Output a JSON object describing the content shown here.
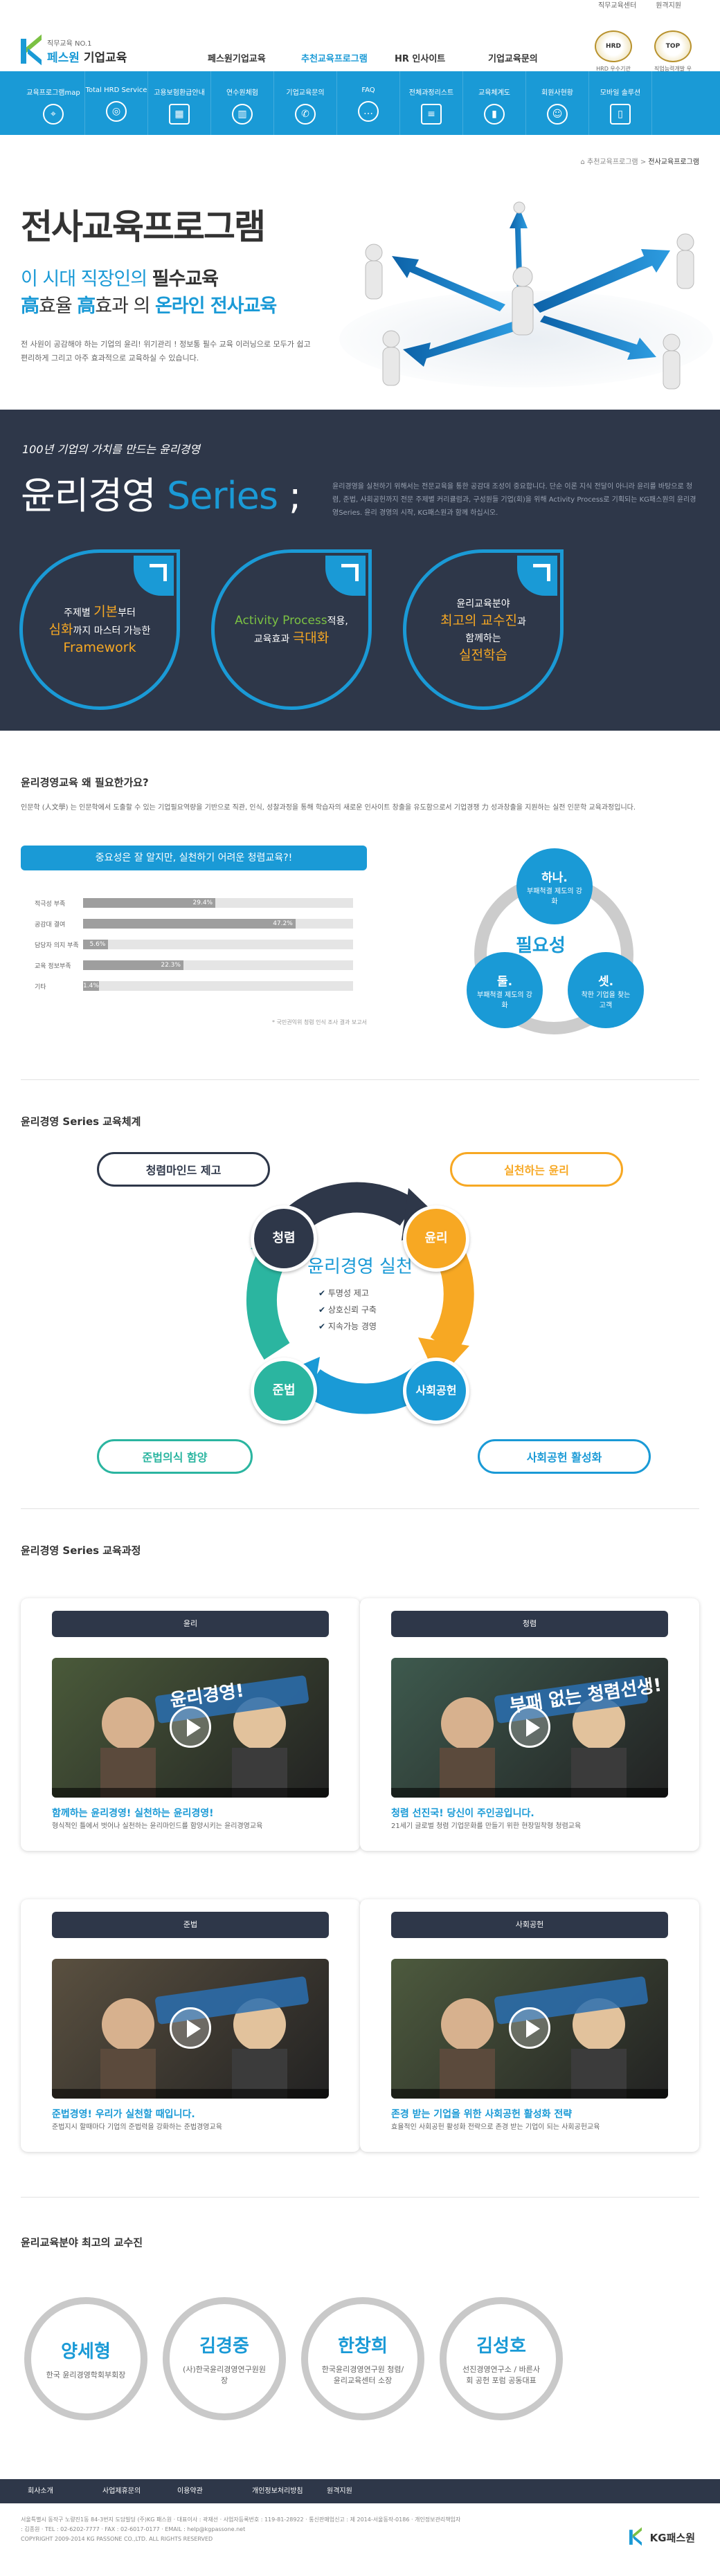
{
  "toplinks": [
    "직무교육센터",
    "원격지원"
  ],
  "logo": {
    "sub": "직무교육 NO.1",
    "brand": "페스원",
    "suffix": "기업교육"
  },
  "gnb": [
    "페스원기업교육",
    "추천교육프로그램",
    "HR 인사이트",
    "기업교육문의"
  ],
  "awards": [
    {
      "medal": "HRD",
      "caption": "HRD 우수기관"
    },
    {
      "medal": "TOP",
      "caption": "직업능력개발 우수기관"
    }
  ],
  "subnav": [
    {
      "label": "교육프로그램map",
      "icon": "compass-icon",
      "glyph": "⌖"
    },
    {
      "label": "Total HRD Service",
      "icon": "target-icon",
      "glyph": "◎"
    },
    {
      "label": "고용보험환급안내",
      "icon": "calculator-icon",
      "glyph": "▦"
    },
    {
      "label": "연수원체험",
      "icon": "building-icon",
      "glyph": "▥"
    },
    {
      "label": "기업교육문의",
      "icon": "phone-icon",
      "glyph": "✆"
    },
    {
      "label": "FAQ",
      "icon": "chat-icon",
      "glyph": "…"
    },
    {
      "label": "전체과정리스트",
      "icon": "list-icon",
      "glyph": "≡"
    },
    {
      "label": "교육체계도",
      "icon": "chart-icon",
      "glyph": "▮"
    },
    {
      "label": "회원사현황",
      "icon": "people-icon",
      "glyph": "☺"
    },
    {
      "label": "모바일 솔루션",
      "icon": "mobile-icon",
      "glyph": "▯"
    }
  ],
  "breadcrumb": {
    "parent": "추천교육프로그램",
    "sep": ">",
    "current": "전사교육프로그램"
  },
  "hero": {
    "title": "전사교육프로그램",
    "line1_pre": "이 시대 직장인의 ",
    "line1_bold": "필수교육",
    "line2_a": "高",
    "line2_b": "효율 ",
    "line2_c": "高",
    "line2_d": "효과 의 ",
    "line2_e": "온라인 전사교육",
    "desc": "전 사원이 공감해야 하는 기업의 윤리! 위기관리 ! 정보통 필수 교육 이러닝으로 모두가 쉽고 편리하게 그리고 아주 효과적으로 교육하실 수 있습니다."
  },
  "ethics": {
    "tagline": "100년 기업의 가치를 만드는 윤리경영",
    "title_a": "윤리경영 ",
    "title_b": "Series",
    "title_c": " ;",
    "desc": "윤리경영을 실천하기 위해서는 전문교육을 통한 공감대 조성이 중요합니다. 단순 이론 지식 전달이 아니라 윤리를 바탕으로 청렴, 준법, 사회공헌까지 전문 주제별 커리큘럼과, 구성원들 기업(회)을 위해 Activity Process로 기획되는 KG패스원의 윤리경영Series. 윤리 경영의 시작, KG패스원과 함께 하십시오.",
    "leaves": [
      {
        "l1": "주제별 ",
        "h1": "기본",
        "l1b": "부터",
        "h2": "심화",
        "l2": "까지 마스터 가능한",
        "h3": "Framework"
      },
      {
        "l1": "Activity Process",
        "l1b": "적용,",
        "l2": "교육효과 ",
        "h2": "극대화"
      },
      {
        "l1": "윤리교육분야",
        "h2": "최고의 교수진",
        "l2": "과",
        "l3": "함께하는",
        "h3": "실전학습"
      }
    ]
  },
  "why": {
    "title": "윤리경영교육 왜 필요한가요?",
    "desc": "인문학 (人文學) 는 인문학에서 도출할 수 있는 기업필요역량을 기반으로 직관, 인식, 성찰과정을 통해 학습자의 새로운 인사이트 창출을 유도함으로서 기업경쟁 力 성과창출을 지원하는 실전 인문학 교육과정입니다.",
    "banner": "중요성은 잘 알지만, 실천하기 어려운 청렴교육?!",
    "note": "* 국민권익위 청렴 인식 조사 결과 보고서"
  },
  "chart_data": {
    "type": "bar",
    "categories": [
      "적극성 부족",
      "공감대 결여",
      "담당자 의지 부족",
      "교육 정보부족",
      "기타"
    ],
    "values": [
      29.4,
      47.2,
      5.6,
      22.3,
      1.4
    ],
    "value_labels": [
      "29.4%",
      "47.2%",
      "5.6%",
      "22.3%",
      "1.4%"
    ],
    "title": "",
    "xlabel": "",
    "ylabel": "",
    "xlim": [
      0,
      100
    ],
    "orientation": "horizontal"
  },
  "need": {
    "center": "필요성",
    "c1_t": "하나.",
    "c1_d": "부패척결 제도의 강화",
    "c2_t": "둘.",
    "c2_d": "부패척결 제도의 강화",
    "c3_t": "셋.",
    "c3_d": "착한 기업을 찾는 고객"
  },
  "system": {
    "title": "윤리경영 Series 교육체계",
    "center": "윤리경영 실천",
    "checks": [
      "투명성 제고",
      "상호신뢰 구축",
      "지속가능 경영"
    ],
    "nodes": [
      "청렴",
      "윤리",
      "사회공헌",
      "준법"
    ],
    "pills": [
      "청렴마인드 제고",
      "실천하는 윤리",
      "사회공헌 활성화",
      "준법의식 함양"
    ]
  },
  "courses": {
    "title": "윤리경영 Series 교육과정",
    "items": [
      {
        "head": "윤리",
        "caption": "윤리경영!",
        "title": "함께하는 윤리경영! 실천하는 윤리경영!",
        "desc": "형식적인 틀에서 벗어나 실천하는 윤리마인드를 함양시키는 윤리경영교육"
      },
      {
        "head": "청렴",
        "caption": "부패 없는 청렴선생!",
        "title": "청렴 선진국! 당신이 주인공입니다.",
        "desc": "21세기 글로벌 청렴 기업문화를 만들기 위한 현장밀착형 청렴교육"
      },
      {
        "head": "준법",
        "caption": "",
        "title": "준법경영! 우리가 실천할 때입니다.",
        "desc": "준법지시 할때마다 기업의 준법력을 강화하는 준법경영교육"
      },
      {
        "head": "사회공헌",
        "caption": "",
        "title": "존경 받는 기업을 위한 사회공헌 활성화 전략",
        "desc": "효율적인 사회공헌 활성화 전략으로 존경 받는 기업이 되는 사회공헌교육"
      }
    ]
  },
  "profs": {
    "title": "윤리교육분야 최고의 교수진",
    "items": [
      {
        "name": "양세형",
        "role": "한국 윤리경영학회부회장"
      },
      {
        "name": "김경중",
        "role": "(사)한국윤리경영연구원원장"
      },
      {
        "name": "한창희",
        "role": "한국윤리경영연구원 청렴/윤리교육센터 소장"
      },
      {
        "name": "김성호",
        "role": "선진경영연구소 / 바른사회 공헌 포럼 공동대표"
      }
    ]
  },
  "footer": {
    "nav": [
      "회사소개",
      "사업제휴문의",
      "이용약관",
      "개인정보처리방침",
      "원격지원"
    ],
    "info": "서울특별시 동작구 노량진1동 84-3번지 도담빌딩 (주)KG 패스원 · 대표이사 : 곽재선 · 사업자등록번호 : 119-81-28922 · 통신판매업신고 : 제 2014-서울동작-0186 · 개인정보관리책임자 : 김종원 · TEL : 02-6202-7777 · FAX : 02-6017-0177 · EMAIL : help@kgpassone.net",
    "copyright": "COPYRIGHT 2009-2014 KG PASSONE CO.,LTD. ALL RIGHTS RESERVED",
    "brand": "KG패스원"
  },
  "colors": {
    "accent": "#1a9ad6",
    "dark": "#2e3749",
    "orange": "#f7a823",
    "green": "#7bc143",
    "teal": "#2bb5a0"
  }
}
